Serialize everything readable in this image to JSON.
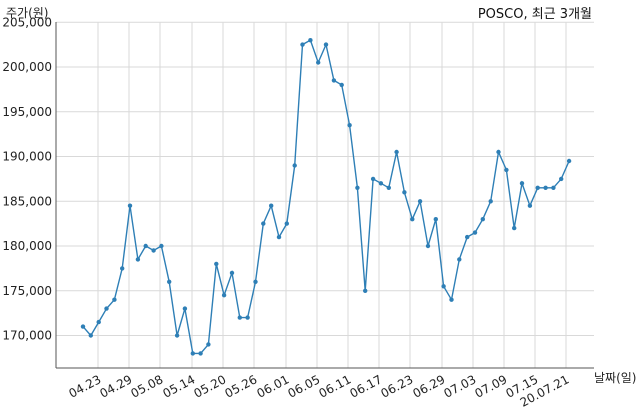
{
  "chart_data": {
    "type": "line",
    "title": "POSCO, 최근 3개월",
    "xlabel": "날짜(일)",
    "ylabel": "주가(원)",
    "ylim": [
      166000,
      205000
    ],
    "grid": true,
    "line_color": "#2e7fb6",
    "x_tick_labels": [
      "04.23",
      "04.29",
      "05.08",
      "05.14",
      "05.20",
      "05.26",
      "06.01",
      "06.05",
      "06.11",
      "06.17",
      "06.23",
      "06.29",
      "07.03",
      "07.09",
      "07.15",
      "20.07.21"
    ],
    "y_tick_labels": [
      "170,000",
      "175,000",
      "180,000",
      "185,000",
      "190,000",
      "195,000",
      "200,000",
      "205,000"
    ],
    "series": [
      {
        "values": [
          171000,
          170000,
          171500,
          173000,
          174000,
          177500,
          184500,
          178500,
          180000,
          179500,
          180000,
          176000,
          170000,
          173000,
          168000,
          168000,
          169000,
          178000,
          174500,
          177000,
          172000,
          172000,
          176000,
          182500,
          184500,
          181000,
          182500,
          189000,
          202500,
          203000,
          200500,
          202500,
          198500,
          198000,
          193500,
          186500,
          175000,
          187500,
          187000,
          186500,
          190500,
          186000,
          183000,
          185000,
          180000,
          183000,
          175500,
          174000,
          178500,
          181000,
          181500,
          183000,
          185000,
          190500,
          188500,
          182000,
          187000,
          184500,
          186500,
          186500,
          186500,
          187500,
          189500
        ]
      }
    ]
  }
}
